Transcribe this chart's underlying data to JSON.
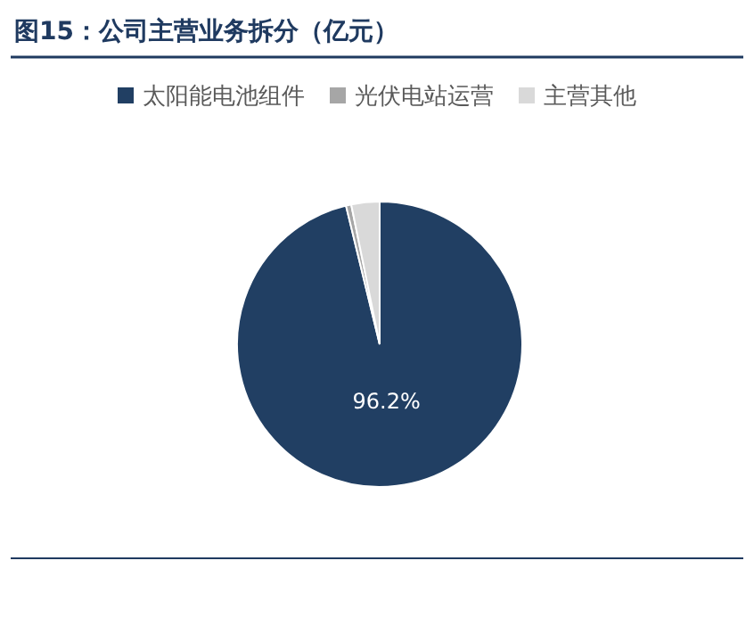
{
  "chart_data": {
    "type": "pie",
    "title": "图15：公司主营业务拆分（亿元）",
    "categories": [
      "太阳能电池组件",
      "光伏电站运营",
      "主营其他"
    ],
    "values": [
      96.2,
      0.6,
      3.2
    ],
    "colors": [
      "#213f63",
      "#a6a6a6",
      "#d9d9d9"
    ],
    "value_labels": [
      "96.2%",
      null,
      null
    ],
    "legend": "top"
  }
}
